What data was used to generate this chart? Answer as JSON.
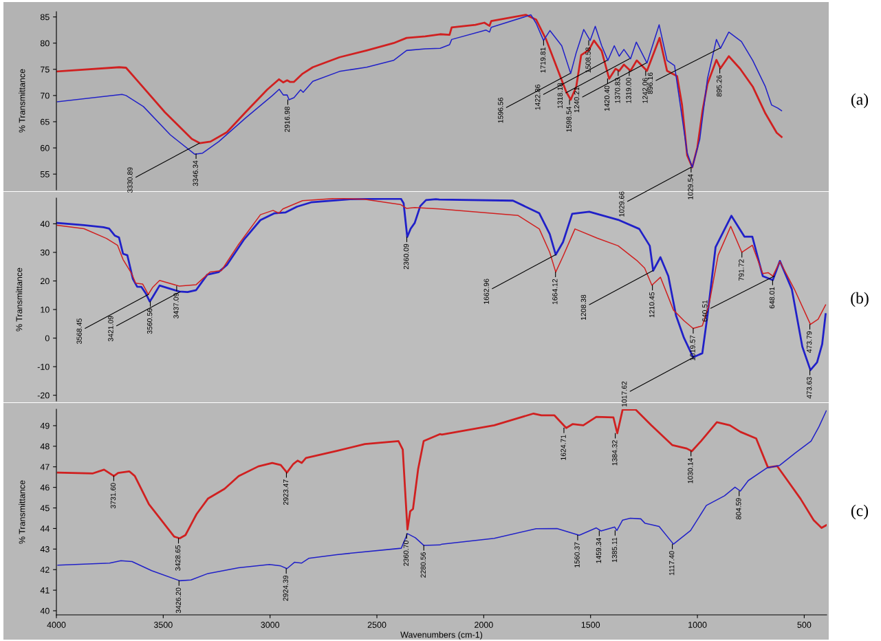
{
  "chart_data": [
    {
      "type": "line",
      "ylabel": "% Transmittance",
      "xlim": [
        4000,
        395
      ],
      "ylim": [
        52,
        86
      ],
      "yticks": [
        55,
        60,
        65,
        70,
        75,
        80,
        85
      ],
      "tick_labels": "y",
      "grid": false,
      "series": [
        {
          "color": "#d02020",
          "x": [
            3995,
            3706,
            3674,
            3618,
            3492,
            3366,
            3328,
            3279,
            3202,
            3115,
            3014,
            2958,
            2938,
            2920,
            2907,
            2888,
            2850,
            2800,
            2675,
            2548,
            2422,
            2361,
            2274,
            2204,
            2160,
            2150,
            2039,
            1997,
            1973,
            1965,
            1803,
            1755,
            1708,
            1661,
            1614,
            1593,
            1567,
            1544,
            1508,
            1484,
            1448,
            1413,
            1383,
            1366,
            1344,
            1313,
            1284,
            1236,
            1177,
            1142,
            1095,
            1072,
            1048,
            1024,
            1000,
            976,
            953,
            911,
            892,
            853,
            800,
            741,
            682,
            629,
            606
          ],
          "values": [
            74.6,
            75.4,
            75.3,
            72.7,
            66.8,
            61.7,
            60.9,
            61.2,
            63.0,
            66.8,
            71.1,
            73.1,
            72.5,
            72.9,
            72.6,
            72.6,
            74.1,
            75.4,
            77.3,
            78.6,
            80.0,
            81.0,
            81.3,
            81.7,
            81.6,
            83.0,
            83.5,
            83.9,
            83.3,
            84.2,
            85.4,
            84.5,
            80.7,
            75.7,
            70.7,
            69.2,
            71.7,
            77.7,
            78.7,
            80.5,
            78.5,
            73.2,
            75.1,
            74.7,
            75.9,
            74.7,
            76.7,
            74.7,
            81.0,
            74.7,
            73.7,
            68.2,
            58.6,
            56.3,
            60.1,
            67.1,
            72.2,
            76.8,
            75.2,
            77.5,
            75.1,
            71.7,
            66.6,
            62.9,
            62.1
          ]
        },
        {
          "color": "#2020c8",
          "x": [
            3995,
            3693,
            3674,
            3593,
            3467,
            3353,
            3316,
            3240,
            3115,
            2989,
            2957,
            2938,
            2920,
            2911,
            2888,
            2857,
            2845,
            2800,
            2675,
            2548,
            2422,
            2361,
            2274,
            2204,
            2160,
            2150,
            1990,
            1973,
            1965,
            1779,
            1755,
            1720,
            1690,
            1635,
            1593,
            1567,
            1532,
            1502,
            1478,
            1448,
            1419,
            1389,
            1366,
            1344,
            1313,
            1286,
            1236,
            1179,
            1142,
            1107,
            1078,
            1048,
            1024,
            989,
            953,
            911,
            892,
            853,
            794,
            741,
            682,
            653,
            624,
            606
          ],
          "values": [
            68.8,
            70.2,
            70.0,
            67.9,
            62.5,
            58.8,
            59.0,
            61.2,
            65.7,
            70.0,
            71.2,
            70.1,
            70.1,
            69.2,
            69.6,
            71.1,
            70.6,
            72.7,
            74.6,
            75.4,
            76.7,
            78.6,
            78.9,
            79.0,
            79.7,
            80.7,
            82.5,
            82.1,
            83.0,
            85.4,
            83.8,
            80.5,
            82.4,
            79.5,
            74.2,
            78.2,
            82.6,
            80.5,
            83.2,
            79.5,
            76.7,
            79.5,
            77.5,
            78.8,
            77.0,
            80.2,
            76.2,
            83.5,
            76.7,
            75.7,
            67.6,
            59.1,
            56.3,
            61.6,
            73.2,
            80.7,
            79.0,
            82.1,
            80.3,
            76.7,
            71.7,
            68.2,
            67.6,
            67.1
          ]
        }
      ],
      "annotations": [
        "(a)",
        {
          "text": "3346.34",
          "x": 3346.34,
          "y": 58.9
        },
        {
          "text": "3330.89",
          "x": 3330.89,
          "y": 60.9
        },
        {
          "text": "2916.98",
          "x": 2916.98,
          "y": 69.2
        },
        {
          "text": "1719.81",
          "x": 1719.81,
          "y": 80.5
        },
        {
          "text": "1598.54",
          "x": 1598.54,
          "y": 69.2
        },
        {
          "text": "1596.56",
          "x": 1596.56,
          "y": 74.2
        },
        {
          "text": "1508.58",
          "x": 1508.58,
          "y": 80.5
        },
        {
          "text": "1420.40",
          "x": 1420.4,
          "y": 73.2
        },
        {
          "text": "1422.86",
          "x": 1422.86,
          "y": 76.7
        },
        {
          "text": "1370.83",
          "x": 1370.83,
          "y": 74.7
        },
        {
          "text": "1319.00",
          "x": 1319.0,
          "y": 74.7
        },
        {
          "text": "1318.18",
          "x": 1318.18,
          "y": 77.0
        },
        {
          "text": "1242.06",
          "x": 1242.06,
          "y": 74.7
        },
        {
          "text": "1240.21",
          "x": 1240.21,
          "y": 76.2
        },
        {
          "text": "1029.54",
          "x": 1029.54,
          "y": 56.3
        },
        {
          "text": "1029.66",
          "x": 1029.66,
          "y": 56.3
        },
        {
          "text": "895.26",
          "x": 895.26,
          "y": 75.2
        },
        {
          "text": "896.16",
          "x": 896.16,
          "y": 79.0
        }
      ]
    },
    {
      "type": "line",
      "ylabel": "% Transmittance",
      "xlim": [
        4000,
        395
      ],
      "ylim": [
        -22,
        49
      ],
      "yticks": [
        -20,
        -10,
        0,
        10,
        20,
        30,
        40
      ],
      "tick_labels": "y",
      "grid": false,
      "series": [
        {
          "color": "#2020c8",
          "x": [
            3996,
            3871,
            3780,
            3753,
            3727,
            3707,
            3688,
            3668,
            3642,
            3622,
            3602,
            3583,
            3563,
            3550,
            3517,
            3478,
            3425,
            3386,
            3346,
            3294,
            3241,
            3202,
            3123,
            3045,
            2979,
            2927,
            2874,
            2808,
            2625,
            2388,
            2375,
            2358,
            2342,
            2323,
            2297,
            2270,
            2224,
            2208,
            1863,
            1740,
            1691,
            1663,
            1629,
            1586,
            1506,
            1371,
            1272,
            1223,
            1207,
            1173,
            1136,
            1100,
            1063,
            1020,
            977,
            952,
            915,
            841,
            780,
            743,
            694,
            647,
            614,
            558,
            509,
            471,
            440,
            416,
            400
          ],
          "values": [
            40.3,
            39.5,
            38.8,
            38.3,
            35.9,
            35.2,
            29.5,
            29.0,
            20.7,
            18.0,
            17.9,
            15.8,
            12.8,
            14.3,
            18.4,
            17.5,
            16.3,
            16.1,
            16.8,
            22.2,
            23.1,
            25.6,
            34.4,
            41.3,
            43.7,
            44.0,
            46.0,
            47.5,
            48.6,
            48.8,
            47.2,
            35.4,
            38.3,
            40.3,
            46.2,
            48.3,
            48.6,
            48.5,
            48.1,
            43.7,
            36.4,
            29.2,
            33.6,
            43.5,
            44.2,
            41.4,
            38.2,
            32.3,
            23.6,
            28.3,
            21.7,
            7.9,
            0.1,
            -6.7,
            -5.3,
            8.4,
            31.8,
            42.8,
            35.5,
            35.5,
            21.7,
            20.3,
            27.0,
            17.1,
            -3.0,
            -11.2,
            -8.5,
            -2.1,
            8.4
          ]
        },
        {
          "color": "#d02020",
          "x": [
            3996,
            3871,
            3766,
            3714,
            3688,
            3648,
            3629,
            3596,
            3570,
            3550,
            3517,
            3425,
            3346,
            3281,
            3228,
            3150,
            3045,
            2986,
            2959,
            2940,
            2848,
            2690,
            2559,
            2388,
            2362,
            2323,
            2208,
            1839,
            1740,
            1691,
            1663,
            1629,
            1573,
            1469,
            1371,
            1284,
            1247,
            1213,
            1173,
            1112,
            1063,
            1020,
            977,
            946,
            903,
            844,
            792,
            743,
            694,
            669,
            647,
            614,
            546,
            471,
            435,
            400
          ],
          "values": [
            39.5,
            38.3,
            34.9,
            32.5,
            27.5,
            22.6,
            19.2,
            18.9,
            15.3,
            17.7,
            20.2,
            18.2,
            18.7,
            23.1,
            23.6,
            32.5,
            43.2,
            44.7,
            43.7,
            45.2,
            48.1,
            48.9,
            48.6,
            46.7,
            45.4,
            45.7,
            45.2,
            42.9,
            38.2,
            30.0,
            23.1,
            28.6,
            38.2,
            35.0,
            32.3,
            27.2,
            24.5,
            18.5,
            21.3,
            9.8,
            6.1,
            3.4,
            4.3,
            11.6,
            29.0,
            39.1,
            30.0,
            32.5,
            22.6,
            22.9,
            21.7,
            26.8,
            17.1,
            4.8,
            6.6,
            11.6
          ]
        }
      ],
      "annotations": [
        "(b)",
        {
          "text": "3560.56",
          "x": 3560.56,
          "y": 12.8
        },
        {
          "text": "3568.45",
          "x": 3568.45,
          "y": 15.3
        },
        {
          "text": "3437.09",
          "x": 3437.09,
          "y": 18.2
        },
        {
          "text": "3421.09",
          "x": 3421.09,
          "y": 16.2
        },
        {
          "text": "2360.09",
          "x": 2360.09,
          "y": 35.4
        },
        {
          "text": "1664.12",
          "x": 1664.12,
          "y": 23.1
        },
        {
          "text": "1662.96",
          "x": 1662.96,
          "y": 29.2
        },
        {
          "text": "1210.45",
          "x": 1210.45,
          "y": 18.5
        },
        {
          "text": "1208.38",
          "x": 1208.38,
          "y": 23.6
        },
        {
          "text": "1019.57",
          "x": 1019.57,
          "y": 3.4
        },
        {
          "text": "1017.62",
          "x": 1017.62,
          "y": -6.7
        },
        {
          "text": "791.72",
          "x": 791.72,
          "y": 30.0
        },
        {
          "text": "648.01",
          "x": 648.01,
          "y": 20.3
        },
        {
          "text": "640.51",
          "x": 640.51,
          "y": 21.7
        },
        {
          "text": "473.79",
          "x": 473.79,
          "y": 4.8
        },
        {
          "text": "473.63",
          "x": 473.63,
          "y": -11.2
        }
      ]
    },
    {
      "type": "line",
      "ylabel": "% Transmittance",
      "xlabel": "Wavenumbers (cm-1)",
      "xlim": [
        4000,
        395
      ],
      "xticks": [
        4000,
        3500,
        3000,
        2500,
        2000,
        1500,
        1000,
        500
      ],
      "ylim": [
        39.8,
        49.8
      ],
      "yticks": [
        40,
        41,
        42,
        43,
        44,
        45,
        46,
        47,
        48,
        49
      ],
      "grid": false,
      "series": [
        {
          "color": "#d02020",
          "x": [
            3993,
            3829,
            3777,
            3731,
            3711,
            3659,
            3633,
            3567,
            3501,
            3449,
            3423,
            3396,
            3344,
            3291,
            3213,
            3147,
            3055,
            2990,
            2950,
            2921,
            2891,
            2871,
            2852,
            2832,
            2688,
            2556,
            2399,
            2379,
            2366,
            2357,
            2344,
            2331,
            2307,
            2281,
            2205,
            2196,
            1951,
            1767,
            1730,
            1669,
            1614,
            1583,
            1534,
            1473,
            1393,
            1375,
            1350,
            1289,
            1216,
            1118,
            1050,
            1026,
            983,
            909,
            848,
            799,
            725,
            670,
            627,
            578,
            517,
            456,
            419,
            397
          ],
          "values": [
            46.72,
            46.68,
            46.86,
            46.55,
            46.7,
            46.78,
            46.55,
            45.18,
            44.3,
            43.61,
            43.52,
            43.68,
            44.7,
            45.45,
            45.93,
            46.55,
            47.02,
            47.19,
            47.09,
            46.72,
            47.14,
            47.3,
            47.19,
            47.43,
            47.77,
            48.11,
            48.25,
            47.84,
            45.52,
            43.95,
            44.84,
            44.95,
            46.89,
            48.25,
            48.59,
            48.57,
            49.02,
            49.59,
            49.5,
            49.5,
            48.89,
            49.08,
            49.02,
            49.43,
            49.4,
            48.63,
            49.78,
            49.78,
            49.02,
            48.06,
            47.89,
            47.76,
            48.25,
            49.17,
            49.02,
            48.7,
            48.38,
            46.97,
            47.04,
            46.33,
            45.44,
            44.41,
            44.03,
            44.16
          ]
        },
        {
          "color": "#2020c8",
          "x": [
            3993,
            3751,
            3698,
            3646,
            3554,
            3423,
            3370,
            3291,
            3147,
            3003,
            2950,
            2921,
            2885,
            2852,
            2819,
            2688,
            2386,
            2357,
            2320,
            2281,
            2205,
            2196,
            1951,
            1755,
            1657,
            1553,
            1473,
            1451,
            1387,
            1377,
            1350,
            1314,
            1265,
            1246,
            1179,
            1112,
            1032,
            958,
            873,
            824,
            799,
            762,
            676,
            615,
            542,
            468,
            431,
            397
          ],
          "values": [
            42.22,
            42.32,
            42.43,
            42.39,
            41.95,
            41.46,
            41.5,
            41.81,
            42.09,
            42.25,
            42.18,
            42.05,
            42.36,
            42.32,
            42.55,
            42.73,
            43.04,
            43.75,
            43.55,
            43.18,
            43.2,
            43.24,
            43.52,
            43.99,
            44.0,
            43.67,
            44.03,
            43.88,
            44.07,
            43.9,
            44.41,
            44.5,
            44.47,
            44.26,
            44.1,
            43.24,
            43.9,
            45.12,
            45.59,
            46.01,
            45.82,
            46.33,
            46.94,
            47.07,
            47.67,
            48.25,
            48.95,
            49.72
          ]
        }
      ],
      "annotations": [
        "(c)",
        {
          "text": "3731.60",
          "x": 3731.6,
          "y": 46.55
        },
        {
          "text": "3428.65",
          "x": 3428.65,
          "y": 43.52
        },
        {
          "text": "2923.47",
          "x": 2923.47,
          "y": 46.72
        },
        {
          "text": "2360.70",
          "x": 2360.7,
          "y": 43.75
        },
        {
          "text": "1624.71",
          "x": 1624.71,
          "y": 48.89
        },
        {
          "text": "1384.32",
          "x": 1384.32,
          "y": 48.63
        },
        {
          "text": "1030.14",
          "x": 1030.14,
          "y": 47.76
        },
        {
          "text": "3426.20",
          "x": 3426.2,
          "y": 41.46
        },
        {
          "text": "2924.39",
          "x": 2924.39,
          "y": 42.05
        },
        {
          "text": "2280.56",
          "x": 2280.56,
          "y": 43.18
        },
        {
          "text": "1560.37",
          "x": 1560.37,
          "y": 43.67
        },
        {
          "text": "1459.34",
          "x": 1459.34,
          "y": 43.88
        },
        {
          "text": "1385.11",
          "x": 1385.11,
          "y": 43.9
        },
        {
          "text": "1117.40",
          "x": 1117.4,
          "y": 43.24
        },
        {
          "text": "804.59",
          "x": 804.59,
          "y": 45.82
        }
      ]
    }
  ]
}
